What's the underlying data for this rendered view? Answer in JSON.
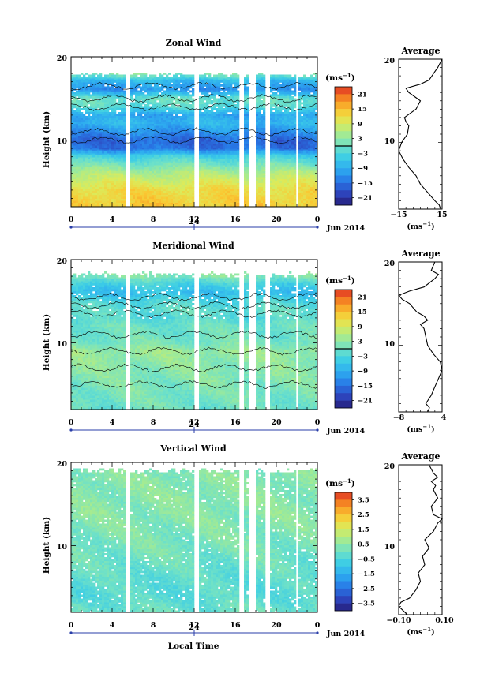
{
  "panels": [
    {
      "title": "Zonal Wind",
      "ylabel": "Height (km)",
      "yticks": [
        "20",
        "10"
      ],
      "xticks": [
        "0",
        "4",
        "8",
        "12",
        "16",
        "20",
        "0"
      ],
      "date_label": "24",
      "month_label": "Jun 2014",
      "unit": "(ms",
      "unit_exp": "−1",
      "cb_ticks": [
        "21",
        "15",
        "9",
        "3",
        "−3",
        "−9",
        "−15",
        "−21"
      ],
      "avg_title": "Average",
      "avg_yticks": [
        "20",
        "10"
      ],
      "avg_xticks": [
        "−15",
        "15"
      ],
      "avg_xlabel": "(ms",
      "avg_xlabel_exp": "−1"
    },
    {
      "title": "Meridional Wind",
      "ylabel": "Height (km)",
      "yticks": [
        "20",
        "10"
      ],
      "xticks": [
        "0",
        "4",
        "8",
        "12",
        "16",
        "20",
        "0"
      ],
      "date_label": "24",
      "month_label": "Jun 2014",
      "unit": "(ms",
      "unit_exp": "−1",
      "cb_ticks": [
        "21",
        "15",
        "9",
        "3",
        "−3",
        "−9",
        "−15",
        "−21"
      ],
      "avg_title": "Average",
      "avg_yticks": [
        "20",
        "10"
      ],
      "avg_xticks": [
        "−8",
        "4"
      ],
      "avg_xlabel": "(ms",
      "avg_xlabel_exp": "−1"
    },
    {
      "title": "Vertical Wind",
      "ylabel": "Height (km)",
      "yticks": [
        "20",
        "10"
      ],
      "xticks": [
        "0",
        "4",
        "8",
        "12",
        "16",
        "20",
        "0"
      ],
      "date_label": "24",
      "month_label": "Jun 2014",
      "xlabel": "Local Time",
      "unit": "(ms",
      "unit_exp": "−1",
      "cb_ticks": [
        "3.5",
        "2.5",
        "1.5",
        "0.5",
        "−0.5",
        "−1.5",
        "−2.5",
        "−3.5"
      ],
      "avg_title": "Average",
      "avg_yticks": [
        "20",
        "10"
      ],
      "avg_xticks": [
        "−0.10",
        "0.10"
      ],
      "avg_xlabel": "(ms",
      "avg_xlabel_exp": "−1"
    }
  ],
  "chart_data": [
    {
      "type": "heatmap",
      "title": "Zonal Wind",
      "xlabel": "",
      "ylabel": "Height (km)",
      "xlim_hours": [
        0,
        24
      ],
      "ylim_km": [
        2,
        20
      ],
      "colorbar_range": [
        -24,
        24
      ],
      "data_gaps_hours": [
        [
          5.3,
          5.8
        ],
        [
          11.9,
          12.5
        ],
        [
          16.5,
          16.9
        ],
        [
          17.4,
          17.9
        ],
        [
          19.0,
          19.3
        ],
        [
          22.0,
          22.2
        ],
        [
          23.2,
          23.4
        ]
      ],
      "profile_knots_km_vs_ms": [
        [
          2,
          14
        ],
        [
          4,
          12
        ],
        [
          6,
          6
        ],
        [
          8,
          -4
        ],
        [
          9,
          -15
        ],
        [
          10,
          -16
        ],
        [
          11,
          -12
        ],
        [
          12,
          -8
        ],
        [
          13,
          -10
        ],
        [
          14,
          -2
        ],
        [
          15,
          0
        ],
        [
          16,
          -12
        ],
        [
          17,
          -8
        ],
        [
          18,
          2
        ],
        [
          19,
          10
        ],
        [
          20,
          14
        ]
      ]
    },
    {
      "type": "line",
      "title": "Average",
      "xlabel": "(ms−1)",
      "ylabel": "",
      "xlim": [
        -15,
        15
      ],
      "ylim": [
        2,
        20
      ],
      "series": [
        {
          "x": [
            14,
            13,
            10,
            5,
            0,
            -3,
            -8,
            -12,
            -15,
            -13,
            -9,
            -8,
            -10,
            -11,
            -3,
            0,
            -4,
            -8,
            -10,
            0,
            6,
            8,
            10,
            12,
            15
          ],
          "y": [
            2,
            2.5,
            3,
            4,
            5,
            6,
            7,
            8,
            9,
            10,
            11,
            12,
            12.5,
            13,
            14,
            15,
            15.5,
            16,
            16.5,
            17,
            17.5,
            18,
            18.5,
            19,
            20
          ]
        }
      ]
    },
    {
      "type": "heatmap",
      "title": "Meridional Wind",
      "xlabel": "",
      "ylabel": "Height (km)",
      "xlim_hours": [
        0,
        24
      ],
      "ylim_km": [
        2,
        20
      ],
      "colorbar_range": [
        -24,
        24
      ],
      "data_gaps_hours": [
        [
          5.3,
          5.8
        ],
        [
          11.9,
          12.5
        ],
        [
          16.5,
          16.9
        ],
        [
          17.4,
          17.9
        ],
        [
          19.0,
          19.3
        ],
        [
          22.0,
          22.2
        ],
        [
          23.2,
          23.4
        ]
      ],
      "profile_knots_km_vs_ms": [
        [
          2,
          0
        ],
        [
          4,
          1
        ],
        [
          6,
          2
        ],
        [
          8,
          3
        ],
        [
          9,
          4
        ],
        [
          10,
          1
        ],
        [
          11,
          0
        ],
        [
          12,
          0
        ],
        [
          13,
          -2
        ],
        [
          14,
          -1
        ],
        [
          15,
          -3
        ],
        [
          16,
          -7
        ],
        [
          17,
          -4
        ],
        [
          18,
          2
        ],
        [
          19,
          3
        ],
        [
          20,
          2
        ]
      ]
    },
    {
      "type": "line",
      "title": "Average",
      "xlabel": "(ms−1)",
      "ylabel": "",
      "xlim": [
        -8,
        4
      ],
      "ylim": [
        2,
        20
      ],
      "series": [
        {
          "x": [
            0,
            0.5,
            -0.5,
            1,
            2,
            3,
            4,
            3.5,
            1.5,
            0,
            -0.5,
            -1,
            -2,
            0,
            -1,
            -3,
            -5,
            -7,
            -8,
            -5,
            -1,
            2,
            3,
            1,
            2
          ],
          "y": [
            2,
            2.5,
            3,
            4,
            5,
            6,
            7,
            8,
            9,
            10,
            11,
            12,
            12.5,
            13,
            13.5,
            14,
            15,
            15.5,
            16,
            16.5,
            17,
            18,
            18.5,
            19,
            20
          ]
        }
      ]
    },
    {
      "type": "heatmap",
      "title": "Vertical Wind",
      "xlabel": "Local Time",
      "ylabel": "Height (km)",
      "xlim_hours": [
        0,
        24
      ],
      "ylim_km": [
        2,
        20
      ],
      "colorbar_range": [
        -4,
        4
      ],
      "data_gaps_hours": [
        [
          5.3,
          5.8
        ],
        [
          11.9,
          12.5
        ],
        [
          16.5,
          16.9
        ],
        [
          17.4,
          17.9
        ],
        [
          19.0,
          19.3
        ],
        [
          22.0,
          22.2
        ],
        [
          23.2,
          23.4
        ]
      ],
      "profile_knots_km_vs_ms": [
        [
          2,
          0
        ],
        [
          4,
          -0.3
        ],
        [
          6,
          -0.2
        ],
        [
          8,
          0
        ],
        [
          10,
          0.2
        ],
        [
          12,
          0.3
        ],
        [
          14,
          0.4
        ],
        [
          16,
          0.4
        ],
        [
          18,
          0.4
        ],
        [
          20,
          0.3
        ]
      ]
    },
    {
      "type": "line",
      "title": "Average",
      "xlabel": "(ms−1)",
      "ylabel": "",
      "xlim": [
        -0.1,
        0.1
      ],
      "ylim": [
        2,
        20
      ],
      "series": [
        {
          "x": [
            -0.06,
            -0.08,
            -0.1,
            -0.09,
            -0.05,
            -0.02,
            0,
            -0.01,
            0.02,
            0.01,
            0.04,
            0.02,
            0.06,
            0.08,
            0.1,
            0.06,
            0.05,
            0.08,
            0.06,
            0.07,
            0.05,
            0.08,
            0.06,
            0.04
          ],
          "y": [
            2,
            2.5,
            3,
            3.5,
            4,
            5,
            6,
            7,
            8,
            9,
            10,
            11,
            12,
            13,
            13.5,
            14,
            15,
            16,
            17,
            17.5,
            18,
            18.5,
            19,
            20
          ]
        }
      ]
    }
  ]
}
